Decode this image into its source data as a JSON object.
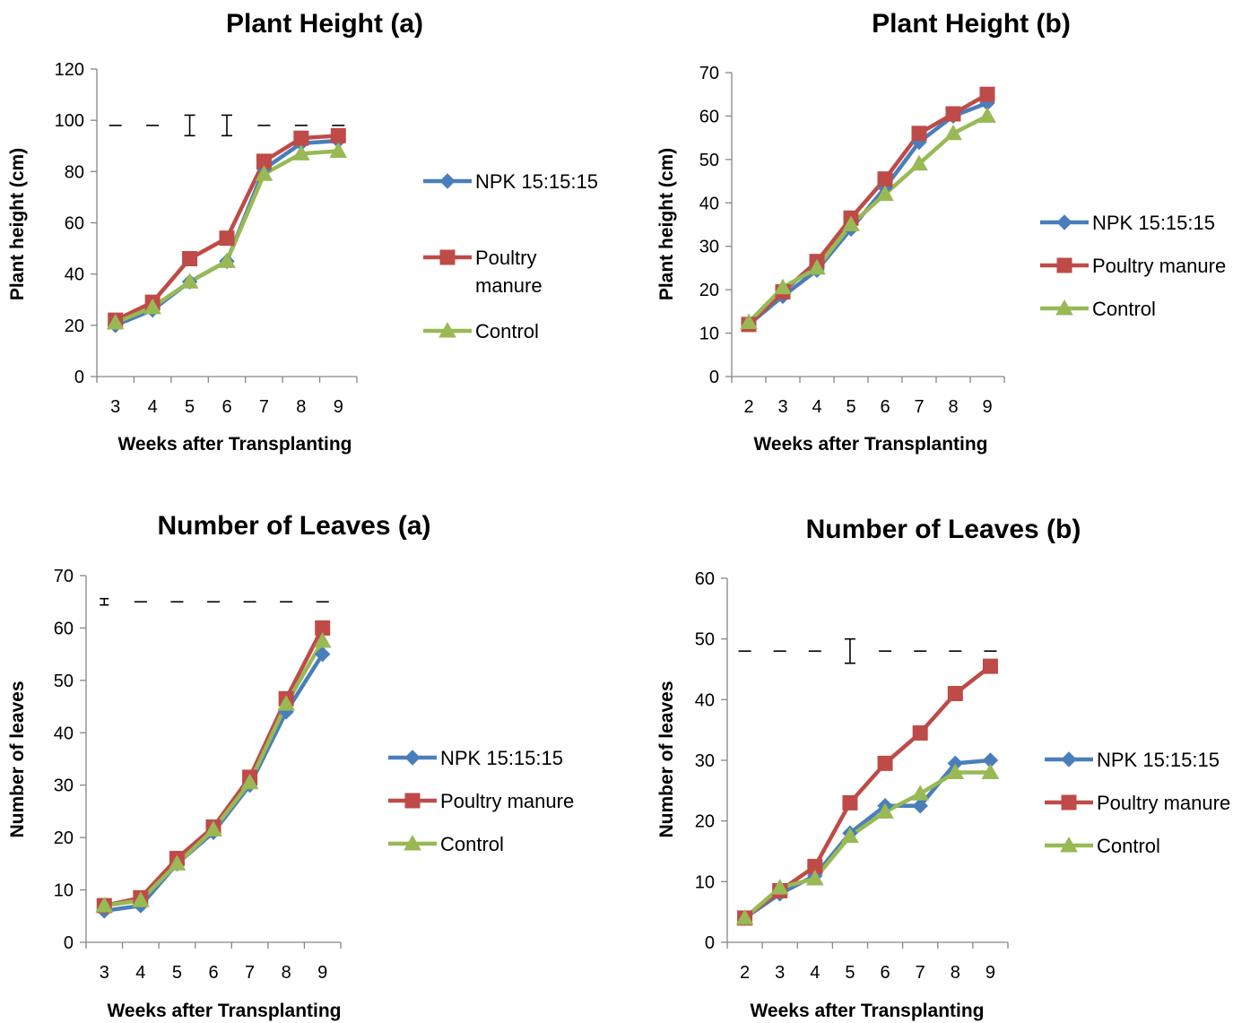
{
  "colors": {
    "npk": "#4a7ebb",
    "poultry": "#be4b48",
    "control": "#98b954",
    "axis": "#868686"
  },
  "chart_data": [
    {
      "id": "ph-a",
      "type": "line",
      "title": "Plant Height (a)",
      "xlabel": "Weeks after Transplanting",
      "ylabel": "Plant height (cm)",
      "categories": [
        "3",
        "4",
        "5",
        "6",
        "7",
        "8",
        "9"
      ],
      "ylim": [
        0,
        120
      ],
      "yticks": [
        "0",
        "20",
        "40",
        "60",
        "80",
        "100",
        "120"
      ],
      "series": [
        {
          "name": "NPK 15:15:15",
          "marker": "diamond",
          "color": "#4a7ebb",
          "values": [
            20,
            26,
            37,
            45,
            81,
            91,
            92
          ]
        },
        {
          "name": "Poultry manure",
          "marker": "square",
          "color": "#be4b48",
          "values": [
            22,
            29,
            46,
            54,
            84,
            93,
            94
          ]
        },
        {
          "name": "Control",
          "marker": "triangle",
          "color": "#98b954",
          "values": [
            21,
            27,
            37,
            45,
            79,
            87,
            88
          ]
        }
      ],
      "error_bars": {
        "center": 98,
        "half_widths": [
          0,
          0,
          4,
          4,
          0,
          0,
          0
        ]
      },
      "legend": "right"
    },
    {
      "id": "ph-b",
      "type": "line",
      "title": "Plant Height (b)",
      "xlabel": "Weeks after Transplanting",
      "ylabel": "Plant height (cm)",
      "categories": [
        "2",
        "3",
        "4",
        "5",
        "6",
        "7",
        "8",
        "9"
      ],
      "ylim": [
        0,
        70
      ],
      "yticks": [
        "0",
        "10",
        "20",
        "30",
        "40",
        "50",
        "60",
        "70"
      ],
      "series": [
        {
          "name": "NPK 15:15:15",
          "marker": "diamond",
          "color": "#4a7ebb",
          "values": [
            12,
            18.5,
            24.5,
            34,
            43.5,
            54,
            60,
            63
          ]
        },
        {
          "name": "Poultry manure",
          "marker": "square",
          "color": "#be4b48",
          "values": [
            12,
            19.5,
            26.5,
            36.5,
            45.5,
            56,
            60.5,
            65
          ]
        },
        {
          "name": "Control",
          "marker": "triangle",
          "color": "#98b954",
          "values": [
            12.5,
            20.5,
            25,
            35,
            42,
            49,
            56,
            60
          ]
        }
      ],
      "legend": "right"
    },
    {
      "id": "nl-a",
      "type": "line",
      "title": "Number of Leaves (a)",
      "xlabel": "Weeks after Transplanting",
      "ylabel": "Number of leaves",
      "categories": [
        "3",
        "4",
        "5",
        "6",
        "7",
        "8",
        "9"
      ],
      "ylim": [
        0,
        70
      ],
      "yticks": [
        "0",
        "10",
        "20",
        "30",
        "40",
        "50",
        "60",
        "70"
      ],
      "series": [
        {
          "name": "NPK 15:15:15",
          "marker": "diamond",
          "color": "#4a7ebb",
          "values": [
            6,
            7,
            15,
            21,
            30,
            44,
            55
          ]
        },
        {
          "name": "Poultry manure",
          "marker": "square",
          "color": "#be4b48",
          "values": [
            7,
            8.5,
            16,
            22,
            31.5,
            46.5,
            60
          ]
        },
        {
          "name": "Control",
          "marker": "triangle",
          "color": "#98b954",
          "values": [
            7,
            8,
            15,
            21.5,
            30.5,
            45.5,
            57.5
          ]
        }
      ],
      "error_bars": {
        "center": 65,
        "half_widths": [
          0.6,
          0,
          0,
          0,
          0,
          0,
          0
        ]
      },
      "legend": "right"
    },
    {
      "id": "nl-b",
      "type": "line",
      "title": "Number of Leaves (b)",
      "xlabel": "Weeks after Transplanting",
      "ylabel": "Number of leaves",
      "categories": [
        "2",
        "3",
        "4",
        "5",
        "6",
        "7",
        "8",
        "9"
      ],
      "ylim": [
        0,
        60
      ],
      "yticks": [
        "0",
        "10",
        "20",
        "30",
        "40",
        "50",
        "60"
      ],
      "series": [
        {
          "name": "NPK 15:15:15",
          "marker": "diamond",
          "color": "#4a7ebb",
          "values": [
            4,
            8,
            11,
            18,
            22.5,
            22.5,
            29.5,
            30
          ]
        },
        {
          "name": "Poultry manure",
          "marker": "square",
          "color": "#be4b48",
          "values": [
            4,
            8.5,
            12.5,
            23,
            29.5,
            34.5,
            41,
            45.5
          ]
        },
        {
          "name": "Control",
          "marker": "triangle",
          "color": "#98b954",
          "values": [
            4,
            9,
            10.5,
            17.5,
            21.5,
            24.5,
            28,
            28
          ]
        }
      ],
      "error_bars": {
        "center": 48,
        "half_widths": [
          0,
          0,
          0,
          2,
          0,
          0,
          0,
          0
        ]
      },
      "legend": "right"
    }
  ]
}
